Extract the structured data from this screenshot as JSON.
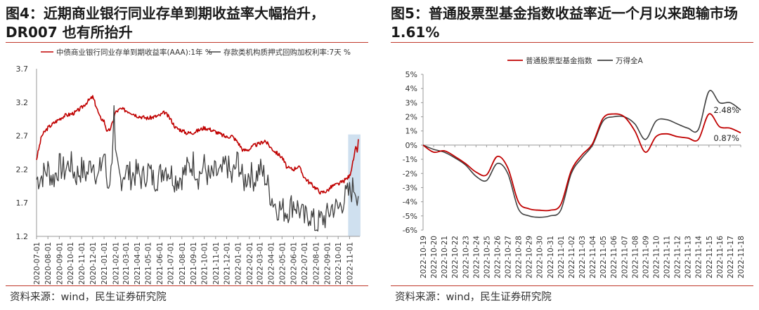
{
  "left_panel": {
    "title": "图4：近期商业银行同业存单到期收益率大幅抬升，DR007 也有所抬升",
    "source": "资料来源：wind，民生证券研究院"
  },
  "right_panel": {
    "title": "图5：普通股票型基金指数收益率近一个月以来跑输市场 1.61%",
    "source": "资料来源：wind，民生证券研究院"
  },
  "colors": {
    "red": "#c00000",
    "gray": "#404040",
    "highlight": "#cfe0ef",
    "rule": "#c0392b"
  },
  "chart_data": [
    {
      "type": "line",
      "title": "",
      "xlabel": "",
      "ylabel": "",
      "ylim": [
        1.2,
        3.7
      ],
      "yticks": [
        "1.2",
        "1.7",
        "2.2",
        "2.7",
        "3.2",
        "3.7"
      ],
      "ytick_values": [
        1.2,
        1.7,
        2.2,
        2.7,
        3.2,
        3.7
      ],
      "categories": [
        "2020-07-01",
        "2020-08-01",
        "2020-09-01",
        "2020-10-01",
        "2020-11-01",
        "2020-12-01",
        "2021-01-01",
        "2021-02-01",
        "2021-03-01",
        "2021-04-01",
        "2021-05-01",
        "2021-06-01",
        "2021-07-01",
        "2021-08-01",
        "2021-09-01",
        "2021-10-01",
        "2021-11-01",
        "2021-12-01",
        "2022-01-01",
        "2022-02-01",
        "2022-03-01",
        "2022-04-01",
        "2022-05-01",
        "2022-06-01",
        "2022-07-01",
        "2022-08-01",
        "2022-09-01",
        "2022-10-01",
        "2022-11-01"
      ],
      "highlight_range": [
        "2022-11-01",
        "2022-11-25"
      ],
      "legend_position": "top",
      "grid": false,
      "series": [
        {
          "name": "中债商业银行同业存单到期收益率(AAA):1年 %",
          "color": "#c00000",
          "points": [
            [
              "2020-07-01",
              2.35
            ],
            [
              "2020-07-15",
              2.7
            ],
            [
              "2020-08-01",
              2.82
            ],
            [
              "2020-08-15",
              2.88
            ],
            [
              "2020-09-01",
              2.95
            ],
            [
              "2020-09-15",
              3.0
            ],
            [
              "2020-10-01",
              3.02
            ],
            [
              "2020-10-15",
              3.05
            ],
            [
              "2020-11-01",
              3.12
            ],
            [
              "2020-11-15",
              3.2
            ],
            [
              "2020-12-01",
              3.28
            ],
            [
              "2020-12-10",
              3.15
            ],
            [
              "2020-12-20",
              2.98
            ],
            [
              "2021-01-01",
              2.92
            ],
            [
              "2021-01-10",
              2.75
            ],
            [
              "2021-01-20",
              2.82
            ],
            [
              "2021-02-01",
              3.05
            ],
            [
              "2021-02-15",
              3.1
            ],
            [
              "2021-03-01",
              3.08
            ],
            [
              "2021-03-15",
              3.05
            ],
            [
              "2021-04-01",
              3.0
            ],
            [
              "2021-04-15",
              2.98
            ],
            [
              "2021-05-01",
              2.96
            ],
            [
              "2021-05-15",
              2.98
            ],
            [
              "2021-06-01",
              3.0
            ],
            [
              "2021-06-15",
              3.05
            ],
            [
              "2021-07-01",
              2.95
            ],
            [
              "2021-07-15",
              2.82
            ],
            [
              "2021-08-01",
              2.78
            ],
            [
              "2021-08-15",
              2.74
            ],
            [
              "2021-09-01",
              2.75
            ],
            [
              "2021-09-15",
              2.78
            ],
            [
              "2021-10-01",
              2.82
            ],
            [
              "2021-10-15",
              2.8
            ],
            [
              "2021-11-01",
              2.76
            ],
            [
              "2021-11-15",
              2.72
            ],
            [
              "2021-12-01",
              2.68
            ],
            [
              "2021-12-15",
              2.7
            ],
            [
              "2022-01-01",
              2.6
            ],
            [
              "2022-01-15",
              2.48
            ],
            [
              "2022-02-01",
              2.5
            ],
            [
              "2022-02-15",
              2.56
            ],
            [
              "2022-03-01",
              2.58
            ],
            [
              "2022-03-15",
              2.63
            ],
            [
              "2022-04-01",
              2.52
            ],
            [
              "2022-04-15",
              2.45
            ],
            [
              "2022-05-01",
              2.38
            ],
            [
              "2022-05-15",
              2.22
            ],
            [
              "2022-06-01",
              2.2
            ],
            [
              "2022-06-15",
              2.25
            ],
            [
              "2022-07-01",
              2.08
            ],
            [
              "2022-07-15",
              2.0
            ],
            [
              "2022-08-01",
              1.92
            ],
            [
              "2022-08-15",
              1.85
            ],
            [
              "2022-09-01",
              1.88
            ],
            [
              "2022-09-15",
              1.95
            ],
            [
              "2022-10-01",
              1.98
            ],
            [
              "2022-10-15",
              2.02
            ],
            [
              "2022-11-01",
              2.1
            ],
            [
              "2022-11-10",
              2.3
            ],
            [
              "2022-11-18",
              2.52
            ],
            [
              "2022-11-22",
              2.45
            ],
            [
              "2022-11-25",
              2.65
            ]
          ]
        },
        {
          "name": "存款类机构质押式回购加权利率:7天 %",
          "color": "#404040",
          "points": [
            [
              "2020-07-01",
              2.05
            ],
            [
              "2020-07-15",
              2.1
            ],
            [
              "2020-08-01",
              2.2
            ],
            [
              "2020-08-15",
              2.05
            ],
            [
              "2020-09-01",
              2.25
            ],
            [
              "2020-09-15",
              2.18
            ],
            [
              "2020-10-01",
              2.3
            ],
            [
              "2020-10-15",
              2.1
            ],
            [
              "2020-11-01",
              2.2
            ],
            [
              "2020-11-15",
              2.12
            ],
            [
              "2020-12-01",
              2.35
            ],
            [
              "2020-12-15",
              2.05
            ],
            [
              "2021-01-01",
              2.45
            ],
            [
              "2021-01-10",
              1.95
            ],
            [
              "2021-01-20",
              2.15
            ],
            [
              "2021-01-28",
              3.05
            ],
            [
              "2021-02-01",
              2.3
            ],
            [
              "2021-02-15",
              2.05
            ],
            [
              "2021-03-01",
              2.2
            ],
            [
              "2021-03-15",
              2.1
            ],
            [
              "2021-04-01",
              2.15
            ],
            [
              "2021-04-15",
              2.05
            ],
            [
              "2021-05-01",
              2.2
            ],
            [
              "2021-05-15",
              2.05
            ],
            [
              "2021-06-01",
              2.1
            ],
            [
              "2021-06-15",
              2.25
            ],
            [
              "2021-07-01",
              2.15
            ],
            [
              "2021-07-15",
              2.05
            ],
            [
              "2021-08-01",
              2.1
            ],
            [
              "2021-08-15",
              2.2
            ],
            [
              "2021-09-01",
              2.3
            ],
            [
              "2021-09-15",
              2.1
            ],
            [
              "2021-10-01",
              2.25
            ],
            [
              "2021-10-15",
              2.05
            ],
            [
              "2021-11-01",
              2.15
            ],
            [
              "2021-11-15",
              2.1
            ],
            [
              "2021-12-01",
              2.3
            ],
            [
              "2021-12-15",
              2.05
            ],
            [
              "2022-01-01",
              2.35
            ],
            [
              "2022-01-15",
              2.0
            ],
            [
              "2022-02-01",
              2.15
            ],
            [
              "2022-02-15",
              2.05
            ],
            [
              "2022-03-01",
              2.2
            ],
            [
              "2022-03-15",
              2.1
            ],
            [
              "2022-04-01",
              1.8
            ],
            [
              "2022-04-15",
              1.65
            ],
            [
              "2022-05-01",
              1.6
            ],
            [
              "2022-05-15",
              1.58
            ],
            [
              "2022-06-01",
              1.7
            ],
            [
              "2022-06-15",
              1.62
            ],
            [
              "2022-07-01",
              1.45
            ],
            [
              "2022-07-15",
              1.55
            ],
            [
              "2022-08-01",
              1.35
            ],
            [
              "2022-08-15",
              1.45
            ],
            [
              "2022-09-01",
              1.5
            ],
            [
              "2022-09-15",
              1.65
            ],
            [
              "2022-10-01",
              1.6
            ],
            [
              "2022-10-15",
              1.75
            ],
            [
              "2022-11-01",
              1.85
            ],
            [
              "2022-11-15",
              1.95
            ],
            [
              "2022-11-25",
              1.8
            ]
          ]
        }
      ]
    },
    {
      "type": "line",
      "title": "",
      "xlabel": "",
      "ylabel": "",
      "ylim": [
        -6,
        5
      ],
      "yticks": [
        "-6%",
        "-5%",
        "-4%",
        "-3%",
        "-2%",
        "-1%",
        "0%",
        "1%",
        "2%",
        "3%",
        "4%",
        "5%"
      ],
      "ytick_values": [
        -6,
        -5,
        -4,
        -3,
        -2,
        -1,
        0,
        1,
        2,
        3,
        4,
        5
      ],
      "categories": [
        "2022-10-19",
        "2022-10-20",
        "2022-10-21",
        "2022-10-22",
        "2022-10-23",
        "2022-10-24",
        "2022-10-25",
        "2022-10-26",
        "2022-10-27",
        "2022-10-28",
        "2022-10-29",
        "2022-10-30",
        "2022-10-31",
        "2022-11-01",
        "2022-11-02",
        "2022-11-03",
        "2022-11-04",
        "2022-11-05",
        "2022-11-06",
        "2022-11-07",
        "2022-11-08",
        "2022-11-09",
        "2022-11-10",
        "2022-11-11",
        "2022-11-12",
        "2022-11-13",
        "2022-11-14",
        "2022-11-15",
        "2022-11-16",
        "2022-11-17",
        "2022-11-18"
      ],
      "legend_position": "top",
      "grid": false,
      "annotations": [
        {
          "text": "2.48%",
          "x_index": 29.6,
          "y": 2.48
        },
        {
          "text": "0.87%",
          "x_index": 29.6,
          "y": 0.5
        }
      ],
      "series": [
        {
          "name": "普通股票型基金指数",
          "color": "#c00000",
          "values": [
            0,
            -0.5,
            -0.4,
            -0.8,
            -1.3,
            -1.9,
            -2.1,
            -0.8,
            -1.6,
            -4.0,
            -4.5,
            -4.6,
            -4.6,
            -4.2,
            -1.8,
            -0.7,
            0.1,
            1.9,
            2.2,
            2.0,
            1.0,
            -0.5,
            0.6,
            0.8,
            0.6,
            0.5,
            0.4,
            2.2,
            1.3,
            1.2,
            0.87
          ]
        },
        {
          "name": "万得全A",
          "color": "#404040",
          "values": [
            0,
            -0.3,
            -0.5,
            -0.9,
            -1.4,
            -2.2,
            -2.5,
            -1.3,
            -2.0,
            -4.5,
            -5.0,
            -5.1,
            -5.0,
            -4.6,
            -2.0,
            -0.9,
            0.0,
            1.7,
            2.0,
            2.0,
            1.5,
            0.4,
            1.7,
            1.8,
            1.5,
            1.2,
            1.1,
            3.8,
            3.0,
            3.0,
            2.48
          ]
        }
      ]
    }
  ]
}
